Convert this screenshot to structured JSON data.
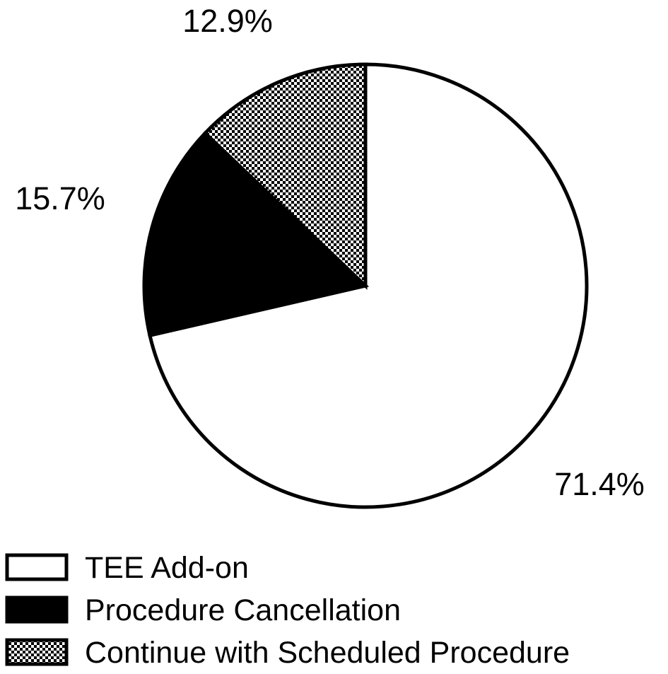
{
  "chart_data": {
    "type": "pie",
    "title": "",
    "slices": [
      {
        "label": "TEE Add-on",
        "value": 71.4,
        "value_label": "71.4%",
        "fill": "white"
      },
      {
        "label": "Procedure Cancellation",
        "value": 15.7,
        "value_label": "15.7%",
        "fill": "black"
      },
      {
        "label": "Continue with Scheduled Procedure",
        "value": 12.9,
        "value_label": "12.9%",
        "fill": "checkerboard"
      }
    ],
    "start_angle_deg": 0,
    "direction": "clockwise",
    "legend_position": "bottom-left"
  },
  "colors": {
    "stroke": "#000000",
    "black_fill": "#000000",
    "white_fill": "#ffffff"
  }
}
